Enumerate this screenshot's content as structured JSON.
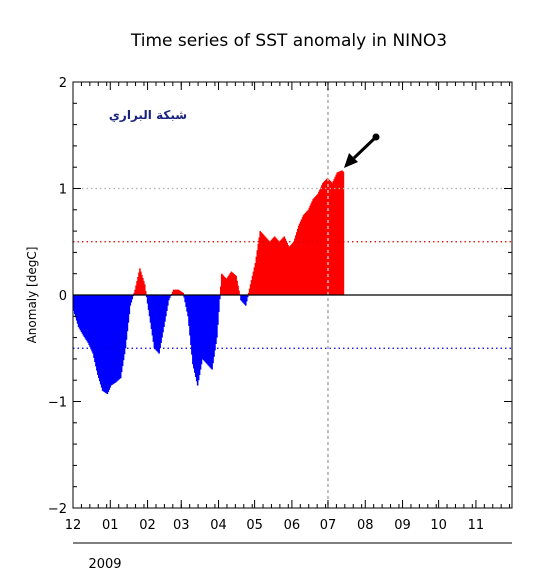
{
  "chart_data": {
    "type": "area",
    "title": "Time series of SST anomaly in NINO3",
    "ylabel": "Anomaly [degC]",
    "xlabel": "",
    "year_label": "2009",
    "watermark": "شبكة البراري",
    "ylim": [
      -2,
      2
    ],
    "yticks": [
      -2,
      -1,
      0,
      1,
      2
    ],
    "ytick_labels": [
      "−2",
      "−1",
      "0",
      "1",
      "2"
    ],
    "x_axis": {
      "start": "2008-12-01",
      "end": "2009-12-01",
      "month_labels": [
        "12",
        "01",
        "02",
        "03",
        "04",
        "05",
        "06",
        "07",
        "08",
        "09",
        "10",
        "11"
      ]
    },
    "reference_lines": [
      {
        "y": 1.0,
        "color": "#b0b0b0"
      },
      {
        "y": 0.5,
        "color": "#e00000"
      },
      {
        "y": -0.5,
        "color": "#0000e0"
      }
    ],
    "current_date_marker": "2009-07-01",
    "colors": {
      "positive": "#ff0000",
      "negative": "#0000ff",
      "arrow": "#000000"
    },
    "series": [
      {
        "x": [
          "2008-12-01",
          "2008-12-05",
          "2008-12-09",
          "2008-12-13",
          "2008-12-17",
          "2008-12-21",
          "2008-12-25",
          "2008-12-29",
          "2009-01-01",
          "2009-01-05",
          "2009-01-09",
          "2009-01-13",
          "2009-01-17",
          "2009-01-21",
          "2009-01-25",
          "2009-01-29",
          "2009-02-02",
          "2009-02-06",
          "2009-02-10",
          "2009-02-14",
          "2009-02-18",
          "2009-02-22",
          "2009-02-26",
          "2009-03-02",
          "2009-03-06",
          "2009-03-10",
          "2009-03-14",
          "2009-03-18",
          "2009-03-22",
          "2009-03-26",
          "2009-03-30",
          "2009-04-03",
          "2009-04-07",
          "2009-04-11",
          "2009-04-15",
          "2009-04-19",
          "2009-04-23",
          "2009-04-27",
          "2009-05-01",
          "2009-05-05",
          "2009-05-09",
          "2009-05-13",
          "2009-05-17",
          "2009-05-21",
          "2009-05-25",
          "2009-05-29",
          "2009-06-02",
          "2009-06-06",
          "2009-06-10",
          "2009-06-14",
          "2009-06-18",
          "2009-06-22",
          "2009-06-26",
          "2009-06-30",
          "2009-07-04",
          "2009-07-08",
          "2009-07-12",
          "2009-07-14"
        ],
        "y": [
          -0.15,
          -0.3,
          -0.38,
          -0.45,
          -0.55,
          -0.75,
          -0.9,
          -0.93,
          -0.85,
          -0.82,
          -0.78,
          -0.5,
          -0.1,
          0.05,
          0.25,
          0.1,
          -0.2,
          -0.5,
          -0.55,
          -0.3,
          -0.05,
          0.05,
          0.05,
          0.02,
          -0.2,
          -0.65,
          -0.85,
          -0.6,
          -0.65,
          -0.7,
          -0.4,
          0.2,
          0.15,
          0.22,
          0.18,
          -0.05,
          -0.1,
          0.1,
          0.3,
          0.6,
          0.55,
          0.5,
          0.55,
          0.5,
          0.55,
          0.45,
          0.5,
          0.65,
          0.75,
          0.8,
          0.9,
          0.95,
          1.05,
          1.1,
          1.05,
          1.15,
          1.17,
          1.15
        ]
      }
    ]
  }
}
